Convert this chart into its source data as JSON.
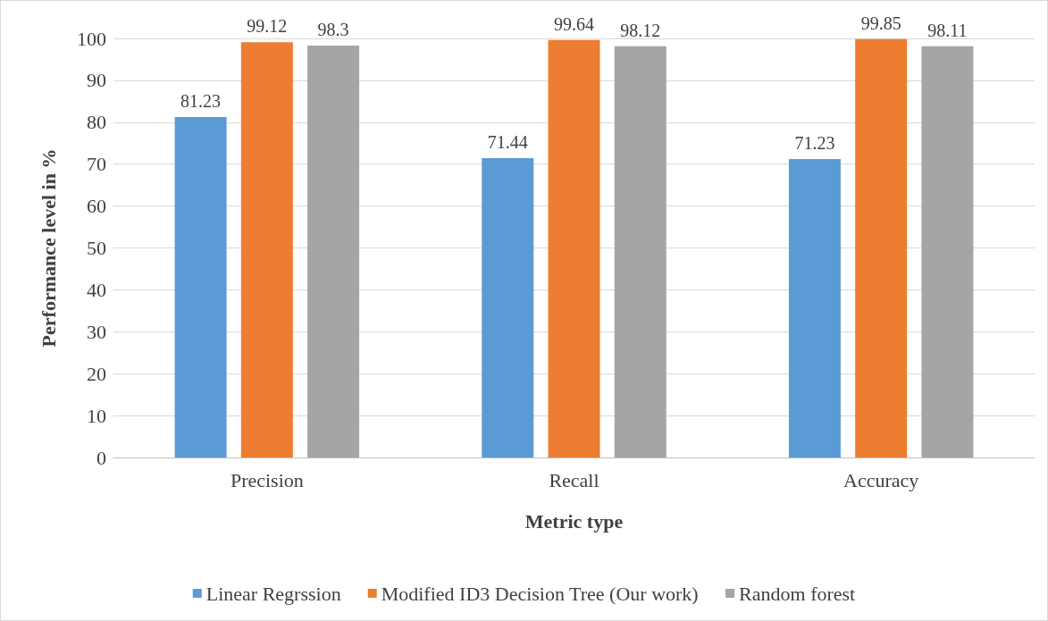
{
  "chart_data": {
    "type": "bar",
    "xlabel": "Metric type",
    "ylabel": "Performance level in %",
    "categories": [
      "Precision",
      "Recall",
      "Accuracy"
    ],
    "series": [
      {
        "name": "Linear Regrssion",
        "color": "#5b9bd5",
        "values": [
          81.23,
          71.44,
          71.23
        ]
      },
      {
        "name": "Modified ID3 Decision Tree (Our work)",
        "color": "#ed7d31",
        "values": [
          99.12,
          99.64,
          99.85
        ]
      },
      {
        "name": "Random forest",
        "color": "#a5a5a5",
        "values": [
          98.3,
          98.12,
          98.11
        ]
      }
    ],
    "ylim": [
      0,
      100
    ],
    "yticks": [
      0,
      10,
      20,
      30,
      40,
      50,
      60,
      70,
      80,
      90,
      100
    ],
    "grid": "y",
    "legend": "bottom",
    "data_labels": true
  }
}
